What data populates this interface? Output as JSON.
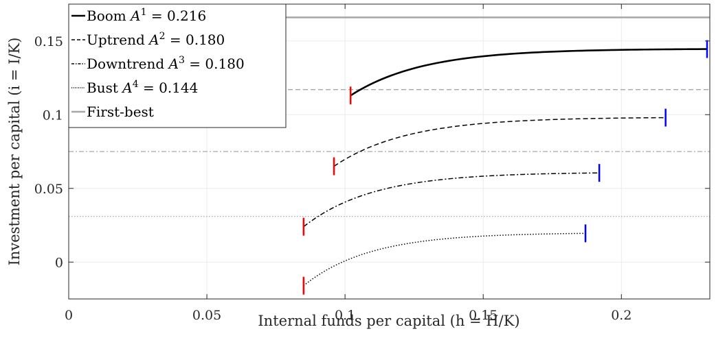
{
  "chart_data": {
    "type": "line",
    "xlabel": "Internal funds per capital (h = H/K)",
    "ylabel": "Investment per capital (i = I/K)",
    "xlim": [
      0,
      0.232
    ],
    "ylim": [
      -0.025,
      0.175
    ],
    "x_ticks": [
      0,
      0.05,
      0.1,
      0.15,
      0.2
    ],
    "x_tick_labels": [
      "0",
      "0.05",
      "0.1",
      "0.15",
      "0.2"
    ],
    "y_ticks": [
      0,
      0.05,
      0.1,
      0.15
    ],
    "y_tick_labels": [
      "0",
      "0.05",
      "0.1",
      "0.15"
    ],
    "grid": true,
    "legend_position": "top-left",
    "series": [
      {
        "name": "Boom A¹ = 0.216",
        "style": "solid",
        "color": "#000000",
        "width": 2.6,
        "h_start": 0.102,
        "h_end": 0.231,
        "i_start": 0.113,
        "i_end": 0.1445,
        "k": 38
      },
      {
        "name": "Uptrend A² = 0.180",
        "style": "dashed",
        "color": "#000000",
        "width": 1.5,
        "h_start": 0.096,
        "h_end": 0.216,
        "i_start": 0.065,
        "i_end": 0.098,
        "k": 38
      },
      {
        "name": "Downtrend A³ = 0.180",
        "style": "dashdot",
        "color": "#000000",
        "width": 1.5,
        "h_start": 0.085,
        "h_end": 0.192,
        "i_start": 0.024,
        "i_end": 0.0605,
        "k": 40
      },
      {
        "name": "Bust A⁴ = 0.144",
        "style": "dotted",
        "color": "#000000",
        "width": 1.5,
        "h_start": 0.085,
        "h_end": 0.187,
        "i_start": -0.016,
        "i_end": 0.0195,
        "k": 42
      },
      {
        "name": "First-best",
        "style": "solid",
        "color": "#a6a6a6",
        "width": 2.5
      }
    ],
    "first_best_levels": [
      {
        "value": 0.166,
        "style": "solid"
      },
      {
        "value": 0.117,
        "style": "dashed"
      },
      {
        "value": 0.075,
        "style": "dashdot"
      },
      {
        "value": 0.031,
        "style": "dotted"
      }
    ],
    "lower_marker_color": "#ff0000",
    "upper_marker_color": "#0000ff"
  }
}
